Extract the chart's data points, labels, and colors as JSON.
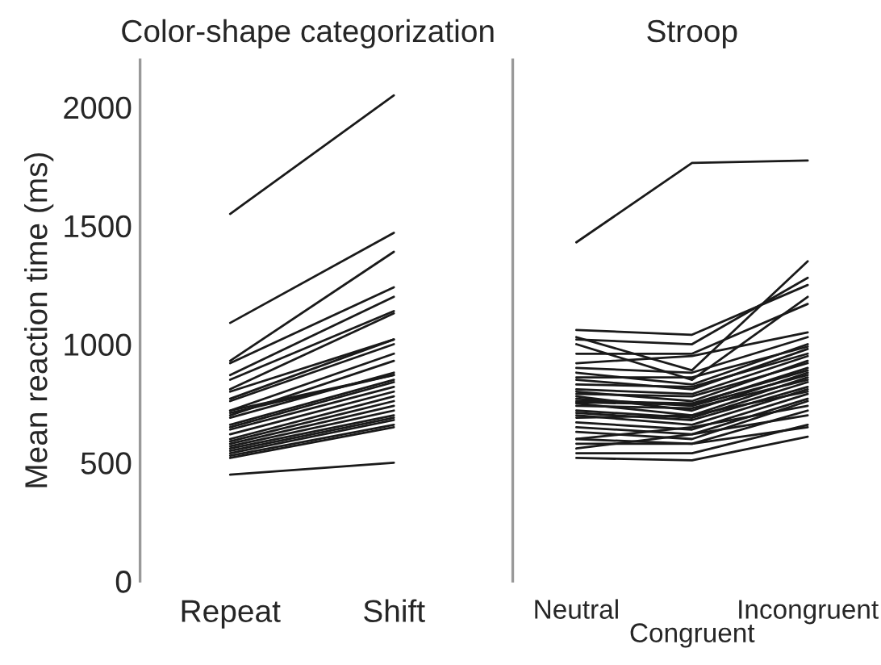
{
  "chart_data": [
    {
      "type": "line",
      "title": "Color-shape categorization",
      "ylabel": "Mean reaction time (ms)",
      "categories": [
        "Repeat",
        "Shift"
      ],
      "ylim": [
        0,
        2200
      ],
      "yticks": [
        0,
        500,
        1000,
        1500,
        2000
      ],
      "grid": false,
      "legend": false,
      "marker": "none",
      "line_style": "solid",
      "series": [
        {
          "color": "#1a1a1a",
          "values": [
            1550,
            2050
          ]
        },
        {
          "color": "#1a1a1a",
          "values": [
            1090,
            1470
          ]
        },
        {
          "color": "#1a1a1a",
          "values": [
            930,
            1390
          ]
        },
        {
          "color": "#1a1a1a",
          "values": [
            920,
            1240
          ]
        },
        {
          "color": "#1a1a1a",
          "values": [
            870,
            1200
          ]
        },
        {
          "color": "#1a1a1a",
          "values": [
            850,
            1140
          ]
        },
        {
          "color": "#1a1a1a",
          "values": [
            810,
            1130
          ]
        },
        {
          "color": "#1a1a1a",
          "values": [
            800,
            1020
          ]
        },
        {
          "color": "#1a1a1a",
          "values": [
            770,
            1020
          ]
        },
        {
          "color": "#1a1a1a",
          "values": [
            760,
            1000
          ]
        },
        {
          "color": "#1a1a1a",
          "values": [
            720,
            960
          ]
        },
        {
          "color": "#1a1a1a",
          "values": [
            700,
            930
          ]
        },
        {
          "color": "#1a1a1a",
          "values": [
            690,
            880
          ]
        },
        {
          "color": "#1a1a1a",
          "values": [
            720,
            870
          ]
        },
        {
          "color": "#1a1a1a",
          "values": [
            710,
            870
          ]
        },
        {
          "color": "#1a1a1a",
          "values": [
            660,
            850
          ]
        },
        {
          "color": "#1a1a1a",
          "values": [
            650,
            840
          ]
        },
        {
          "color": "#1a1a1a",
          "values": [
            640,
            820
          ]
        },
        {
          "color": "#1a1a1a",
          "values": [
            620,
            800
          ]
        },
        {
          "color": "#1a1a1a",
          "values": [
            600,
            780
          ]
        },
        {
          "color": "#1a1a1a",
          "values": [
            590,
            760
          ]
        },
        {
          "color": "#1a1a1a",
          "values": [
            580,
            740
          ]
        },
        {
          "color": "#1a1a1a",
          "values": [
            570,
            720
          ]
        },
        {
          "color": "#1a1a1a",
          "values": [
            560,
            700
          ]
        },
        {
          "color": "#1a1a1a",
          "values": [
            550,
            690
          ]
        },
        {
          "color": "#1a1a1a",
          "values": [
            540,
            680
          ]
        },
        {
          "color": "#1a1a1a",
          "values": [
            530,
            660
          ]
        },
        {
          "color": "#1a1a1a",
          "values": [
            520,
            650
          ]
        },
        {
          "color": "#1a1a1a",
          "values": [
            450,
            500
          ]
        }
      ]
    },
    {
      "type": "line",
      "title": "Stroop",
      "categories": [
        "Neutral",
        "Congruent",
        "Incongruent"
      ],
      "ylim": [
        0,
        2200
      ],
      "yticks": [
        0,
        500,
        1000,
        1500,
        2000
      ],
      "tick_labels": "x",
      "grid": false,
      "legend": false,
      "marker": "none",
      "line_style": "solid",
      "series": [
        {
          "color": "#1a1a1a",
          "values": [
            1430,
            1765,
            1775
          ]
        },
        {
          "color": "#1a1a1a",
          "values": [
            1060,
            1040,
            1250
          ]
        },
        {
          "color": "#1a1a1a",
          "values": [
            1030,
            890,
            1350
          ]
        },
        {
          "color": "#1a1a1a",
          "values": [
            1020,
            1000,
            1280
          ]
        },
        {
          "color": "#1a1a1a",
          "values": [
            1000,
            850,
            1200
          ]
        },
        {
          "color": "#1a1a1a",
          "values": [
            960,
            960,
            1170
          ]
        },
        {
          "color": "#1a1a1a",
          "values": [
            920,
            950,
            1050
          ]
        },
        {
          "color": "#1a1a1a",
          "values": [
            900,
            880,
            1030
          ]
        },
        {
          "color": "#1a1a1a",
          "values": [
            880,
            830,
            1000
          ]
        },
        {
          "color": "#1a1a1a",
          "values": [
            860,
            860,
            990
          ]
        },
        {
          "color": "#1a1a1a",
          "values": [
            850,
            810,
            980
          ]
        },
        {
          "color": "#1a1a1a",
          "values": [
            830,
            820,
            960
          ]
        },
        {
          "color": "#1a1a1a",
          "values": [
            810,
            790,
            950
          ]
        },
        {
          "color": "#1a1a1a",
          "values": [
            800,
            760,
            930
          ]
        },
        {
          "color": "#1a1a1a",
          "values": [
            790,
            780,
            920
          ]
        },
        {
          "color": "#1a1a1a",
          "values": [
            755,
            745,
            900
          ]
        },
        {
          "color": "#1a1a1a",
          "values": [
            760,
            750,
            890
          ]
        },
        {
          "color": "#1a1a1a",
          "values": [
            780,
            720,
            880
          ]
        },
        {
          "color": "#1a1a1a",
          "values": [
            770,
            740,
            870
          ]
        },
        {
          "color": "#1a1a1a",
          "values": [
            750,
            700,
            860
          ]
        },
        {
          "color": "#1a1a1a",
          "values": [
            740,
            730,
            850
          ]
        },
        {
          "color": "#1a1a1a",
          "values": [
            720,
            690,
            840
          ]
        },
        {
          "color": "#1a1a1a",
          "values": [
            710,
            680,
            820
          ]
        },
        {
          "color": "#1a1a1a",
          "values": [
            700,
            660,
            810
          ]
        },
        {
          "color": "#1a1a1a",
          "values": [
            690,
            700,
            800
          ]
        },
        {
          "color": "#1a1a1a",
          "values": [
            670,
            640,
            790
          ]
        },
        {
          "color": "#1a1a1a",
          "values": [
            650,
            620,
            770
          ]
        },
        {
          "color": "#1a1a1a",
          "values": [
            630,
            600,
            760
          ]
        },
        {
          "color": "#1a1a1a",
          "values": [
            600,
            650,
            740
          ]
        },
        {
          "color": "#1a1a1a",
          "values": [
            580,
            580,
            720
          ]
        },
        {
          "color": "#1a1a1a",
          "values": [
            560,
            620,
            700
          ]
        },
        {
          "color": "#1a1a1a",
          "values": [
            540,
            540,
            660
          ]
        },
        {
          "color": "#1a1a1a",
          "values": [
            600,
            580,
            650
          ]
        },
        {
          "color": "#1a1a1a",
          "values": [
            520,
            510,
            610
          ]
        }
      ]
    }
  ]
}
